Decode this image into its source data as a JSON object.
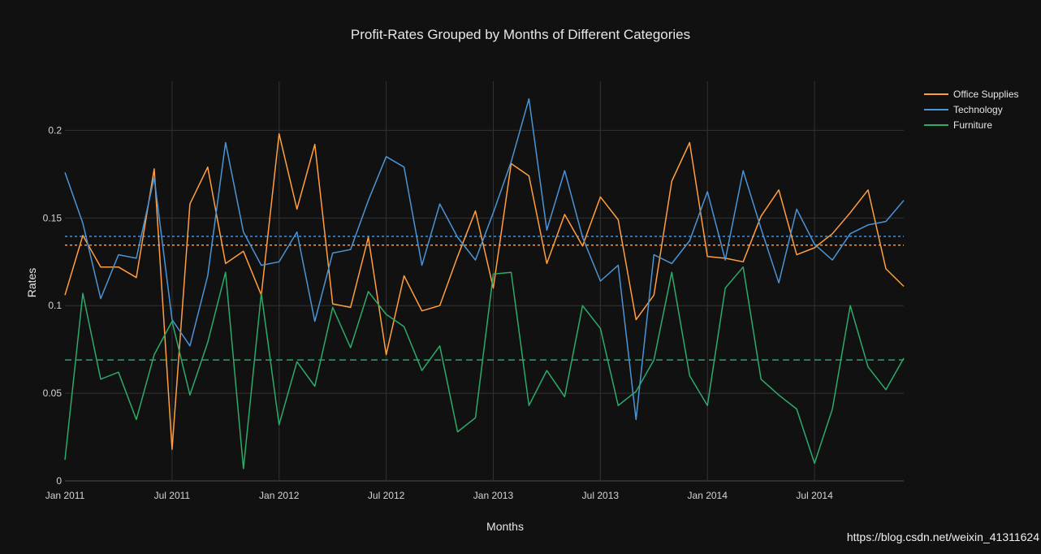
{
  "chart_data": {
    "type": "line",
    "title": "Profit-Rates Grouped by Months of Different Categories",
    "xlabel": "Months",
    "ylabel": "Rates",
    "x_start": "2011-01",
    "x_tick_labels": [
      "Jan 2011",
      "Jul 2011",
      "Jan 2012",
      "Jul 2012",
      "Jan 2013",
      "Jul 2013",
      "Jan 2014",
      "Jul 2014"
    ],
    "x_tick_indices": [
      0,
      6,
      12,
      18,
      24,
      30,
      36,
      42
    ],
    "x_range_index": [
      0,
      47
    ],
    "y_tick_labels": [
      "0",
      "0.05",
      "0.1",
      "0.15",
      "0.2"
    ],
    "y_tick_values": [
      0,
      0.05,
      0.1,
      0.15,
      0.2
    ],
    "ylim": [
      0,
      0.228
    ],
    "grid": true,
    "legend_position": "top-right",
    "series": [
      {
        "name": "Office Supplies",
        "color": "#ff9f40",
        "mean": 0.1345,
        "values": [
          0.106,
          0.14,
          0.122,
          0.122,
          0.116,
          0.178,
          0.018,
          0.158,
          0.179,
          0.124,
          0.131,
          0.106,
          0.198,
          0.155,
          0.192,
          0.101,
          0.099,
          0.139,
          0.072,
          0.117,
          0.097,
          0.1,
          0.128,
          0.154,
          0.11,
          0.181,
          0.174,
          0.124,
          0.152,
          0.134,
          0.162,
          0.149,
          0.092,
          0.106,
          0.171,
          0.193,
          0.128,
          0.127,
          0.125,
          0.151,
          0.166,
          0.129,
          0.133,
          0.141,
          0.153,
          0.166,
          0.121,
          0.111
        ]
      },
      {
        "name": "Technology",
        "color": "#4b94d6",
        "mean": 0.1395,
        "values": [
          0.176,
          0.147,
          0.104,
          0.129,
          0.127,
          0.173,
          0.092,
          0.077,
          0.117,
          0.193,
          0.142,
          0.123,
          0.125,
          0.142,
          0.091,
          0.13,
          0.132,
          0.16,
          0.185,
          0.179,
          0.123,
          0.158,
          0.139,
          0.126,
          0.153,
          0.182,
          0.218,
          0.143,
          0.177,
          0.139,
          0.114,
          0.123,
          0.035,
          0.129,
          0.124,
          0.137,
          0.165,
          0.126,
          0.177,
          0.144,
          0.113,
          0.155,
          0.135,
          0.126,
          0.141,
          0.146,
          0.148,
          0.16
        ]
      },
      {
        "name": "Furniture",
        "color": "#2eaa6a",
        "mean": 0.069,
        "values": [
          0.012,
          0.107,
          0.058,
          0.062,
          0.035,
          0.072,
          0.091,
          0.049,
          0.079,
          0.119,
          0.007,
          0.107,
          0.032,
          0.068,
          0.054,
          0.099,
          0.076,
          0.108,
          0.095,
          0.088,
          0.063,
          0.077,
          0.028,
          0.036,
          0.118,
          0.119,
          0.043,
          0.063,
          0.048,
          0.1,
          0.087,
          0.043,
          0.051,
          0.069,
          0.119,
          0.06,
          0.043,
          0.11,
          0.122,
          0.058,
          0.049,
          0.041,
          0.01,
          0.041,
          0.1,
          0.065,
          0.052,
          0.07
        ]
      }
    ]
  },
  "watermark": "https://blog.csdn.net/weixin_41311624"
}
